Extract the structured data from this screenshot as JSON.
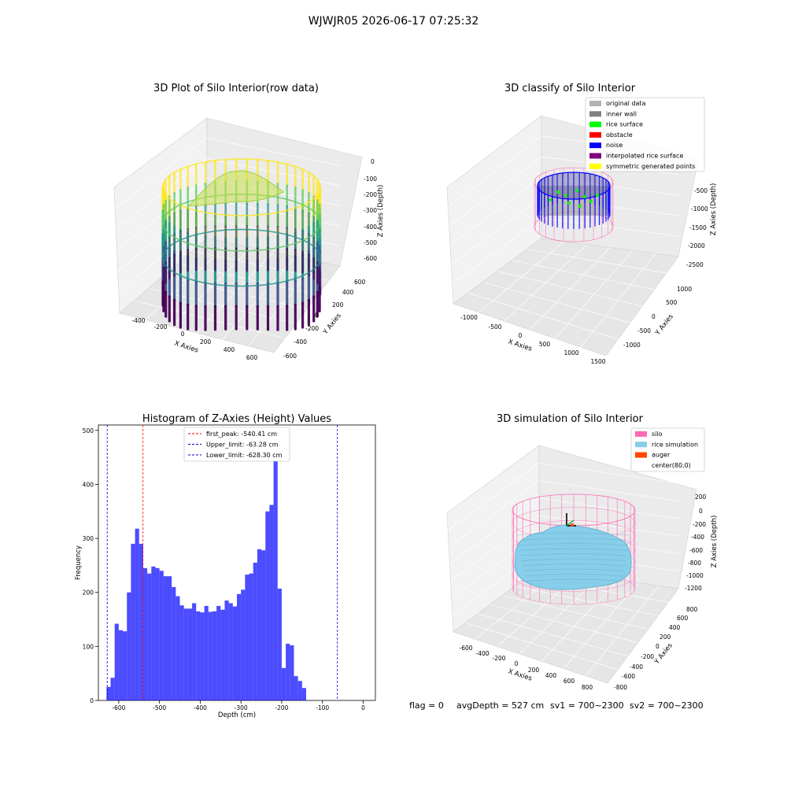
{
  "figure": {
    "suptitle": "WJWJR05 2026-06-17 07:25:32"
  },
  "panel_raw": {
    "title": "3D Plot of Silo Interior(row data)",
    "xlabel": "X Axies",
    "ylabel": "Y Axies",
    "zlabel": "Z Axies (Depth)",
    "x_ticks": [
      "-400",
      "-200",
      "0",
      "200",
      "400",
      "600"
    ],
    "y_ticks": [
      "-600",
      "-400",
      "-200",
      "0",
      "200",
      "400",
      "600"
    ],
    "z_ticks": [
      "0",
      "-100",
      "-200",
      "-300",
      "-400",
      "-500",
      "-600"
    ],
    "colormap": [
      "#440154",
      "#3b528b",
      "#21918c",
      "#5ec962",
      "#fde725"
    ]
  },
  "panel_classify": {
    "title": "3D classify of Silo Interior",
    "xlabel": "X Axies",
    "ylabel": "Y Axies",
    "zlabel": "Z Axies (Depth)",
    "x_ticks": [
      "-1000",
      "-500",
      "0",
      "500",
      "1000",
      "1500"
    ],
    "y_ticks": [
      "-1000",
      "-500",
      "0",
      "500",
      "1000"
    ],
    "z_ticks": [
      "-500",
      "-1000",
      "-1500",
      "-2000",
      "-2500"
    ],
    "legend": [
      {
        "label": "original data",
        "color": "#b3b3b3"
      },
      {
        "label": "inner wall",
        "color": "#808080"
      },
      {
        "label": "rice surface",
        "color": "#00ff00"
      },
      {
        "label": "obstacle",
        "color": "#ff0000"
      },
      {
        "label": "noise",
        "color": "#0000ff"
      },
      {
        "label": "interpolated rice surface",
        "color": "#800080"
      },
      {
        "label": "symmetric generated points",
        "color": "#ffff00"
      }
    ]
  },
  "panel_hist": {
    "title": "Histogram of Z-Axies (Height) Values",
    "xlabel": "Depth (cm)",
    "ylabel": "Frequency",
    "legend": [
      {
        "label": "first_peak: -540.41 cm",
        "color": "#ff0000"
      },
      {
        "label": "Upper_limit: -63.28 cm",
        "color": "#0000cc"
      },
      {
        "label": "Lower_limit: -628.30 cm",
        "color": "#0000cc"
      }
    ]
  },
  "panel_sim": {
    "title": "3D simulation of Silo Interior",
    "xlabel": "X Axies",
    "ylabel": "Y Axies",
    "zlabel": "Z Axies (Depth)",
    "x_ticks": [
      "-600",
      "-400",
      "-200",
      "0",
      "200",
      "400",
      "600",
      "800"
    ],
    "y_ticks": [
      "-800",
      "-600",
      "-400",
      "-200",
      "0",
      "200",
      "400",
      "600",
      "800"
    ],
    "z_ticks": [
      "200",
      "0",
      "-200",
      "-400",
      "-600",
      "-800",
      "-1000",
      "-1200"
    ],
    "legend": [
      {
        "label": "silo",
        "color": "#ff69b4"
      },
      {
        "label": "rice simulation",
        "color": "#87ceeb"
      },
      {
        "label": "auger",
        "color": "#ff4500"
      },
      {
        "label": "center(80,0)",
        "color": "#ffffff"
      }
    ]
  },
  "footer": {
    "flag": "flag = 0",
    "avg_depth": "avgDepth = 527 cm",
    "sv1": "sv1 = 700~2300",
    "sv2": "sv2 = 700~2300"
  },
  "chart_data": [
    {
      "type": "scatter",
      "title": "3D Plot of Silo Interior(row data)",
      "xlabel": "X Axies",
      "ylabel": "Y Axies",
      "zlabel": "Z Axies (Depth)",
      "xlim": [
        -500,
        700
      ],
      "ylim": [
        -700,
        700
      ],
      "zlim": [
        -650,
        20
      ]
    },
    {
      "type": "scatter",
      "title": "3D classify of Silo Interior",
      "xlabel": "X Axies",
      "ylabel": "Y Axies",
      "zlabel": "Z Axies (Depth)",
      "xlim": [
        -1200,
        1500
      ],
      "ylim": [
        -1200,
        1200
      ],
      "zlim": [
        -2600,
        0
      ],
      "series": [
        {
          "name": "original data"
        },
        {
          "name": "inner wall"
        },
        {
          "name": "rice surface"
        },
        {
          "name": "obstacle"
        },
        {
          "name": "noise"
        },
        {
          "name": "interpolated rice surface"
        },
        {
          "name": "symmetric generated points"
        }
      ]
    },
    {
      "type": "bar",
      "title": "Histogram of Z-Axies (Height) Values",
      "xlabel": "Depth (cm)",
      "ylabel": "Frequency",
      "xlim": [
        -650,
        30
      ],
      "ylim": [
        0,
        510
      ],
      "bin_start": -630,
      "bin_width": 10,
      "values": [
        25,
        42,
        142,
        130,
        128,
        200,
        290,
        318,
        290,
        245,
        235,
        248,
        245,
        240,
        230,
        230,
        210,
        193,
        176,
        170,
        170,
        180,
        165,
        163,
        175,
        164,
        165,
        175,
        168,
        185,
        180,
        174,
        197,
        205,
        233,
        235,
        255,
        280,
        278,
        350,
        362,
        487,
        207,
        60,
        105,
        102,
        45,
        36,
        23
      ],
      "x_ticks": [
        -600,
        -500,
        -400,
        -300,
        -200,
        -100,
        0
      ],
      "y_ticks": [
        0,
        100,
        200,
        300,
        400,
        500
      ],
      "vlines": [
        {
          "name": "first_peak: -540.41 cm",
          "x": -540.41
        },
        {
          "name": "Upper_limit: -63.28 cm",
          "x": -63.28
        },
        {
          "name": "Lower_limit: -628.30 cm",
          "x": -628.3
        }
      ]
    },
    {
      "type": "area",
      "title": "3D simulation of Silo Interior",
      "xlabel": "X Axies",
      "ylabel": "Y Axies",
      "zlabel": "Z Axies (Depth)",
      "xlim": [
        -700,
        900
      ],
      "ylim": [
        -900,
        900
      ],
      "zlim": [
        -1300,
        300
      ],
      "series": [
        {
          "name": "silo"
        },
        {
          "name": "rice simulation"
        },
        {
          "name": "auger"
        },
        {
          "name": "center(80,0)"
        }
      ]
    }
  ]
}
